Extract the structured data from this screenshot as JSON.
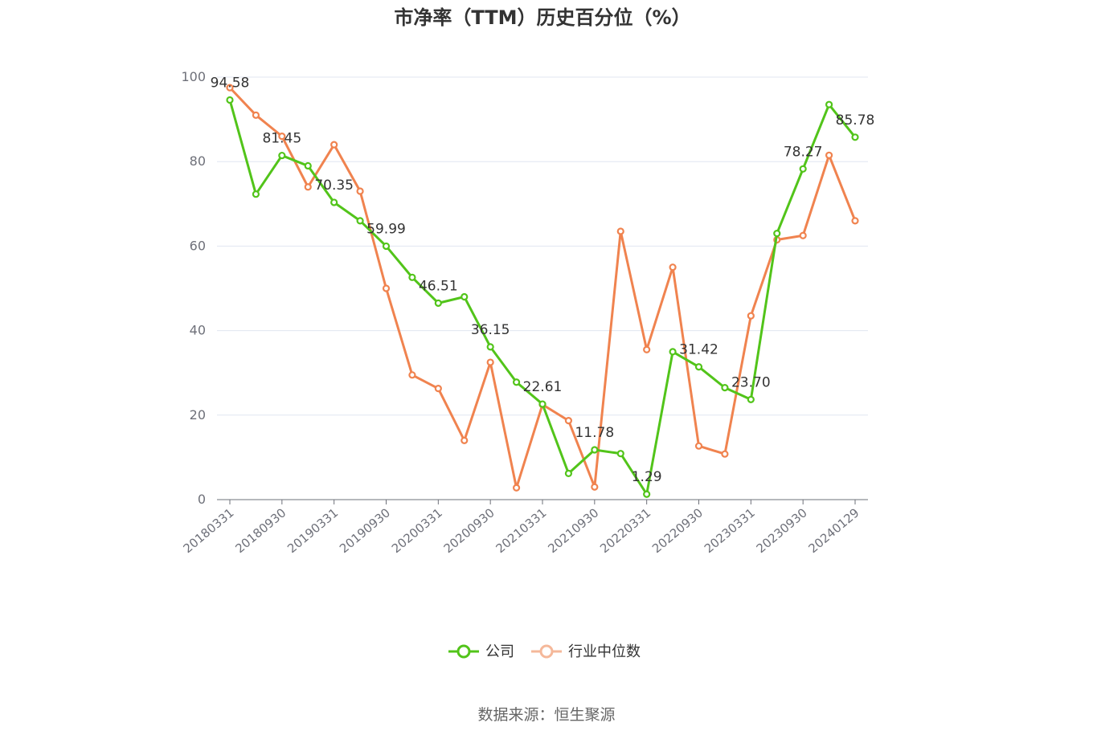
{
  "chart_data": {
    "type": "line",
    "title": "市净率（TTM）历史百分位（%）",
    "source": "数据来源：恒生聚源",
    "ylim": [
      0,
      100
    ],
    "y_ticks": [
      0,
      20,
      40,
      60,
      80,
      100
    ],
    "grid": true,
    "legend_position": "bottom-center",
    "x_tick_labels": [
      "20180331",
      "20180930",
      "20190331",
      "20190930",
      "20200331",
      "20200930",
      "20210331",
      "20210930",
      "20220331",
      "20220930",
      "20230331",
      "20230930",
      "20240129"
    ],
    "series": [
      {
        "name": "公司",
        "color": "#52c41a",
        "values": [
          94.58,
          72.3,
          81.45,
          79.0,
          70.35,
          66.0,
          59.99,
          52.6,
          46.51,
          48.0,
          36.15,
          27.8,
          22.61,
          6.2,
          11.78,
          10.9,
          1.29,
          35.0,
          31.42,
          26.5,
          23.7,
          63.0,
          78.27,
          93.5,
          85.78
        ],
        "labels": {
          "0": "94.58",
          "2": "81.45",
          "4": "70.35",
          "6": "59.99",
          "8": "46.51",
          "10": "36.15",
          "12": "22.61",
          "14": "11.78",
          "16": "1.29",
          "18": "31.42",
          "20": "23.70",
          "22": "78.27",
          "24": "85.78"
        }
      },
      {
        "name": "行业中位数",
        "color": "#f0834f",
        "values": [
          97.5,
          91.0,
          86.0,
          74.0,
          84.0,
          73.0,
          50.0,
          29.5,
          26.3,
          14.0,
          32.5,
          2.8,
          22.5,
          18.7,
          3.0,
          63.5,
          35.5,
          55.0,
          12.7,
          10.8,
          43.5,
          61.5,
          62.5,
          81.5,
          66.0
        ]
      }
    ]
  }
}
